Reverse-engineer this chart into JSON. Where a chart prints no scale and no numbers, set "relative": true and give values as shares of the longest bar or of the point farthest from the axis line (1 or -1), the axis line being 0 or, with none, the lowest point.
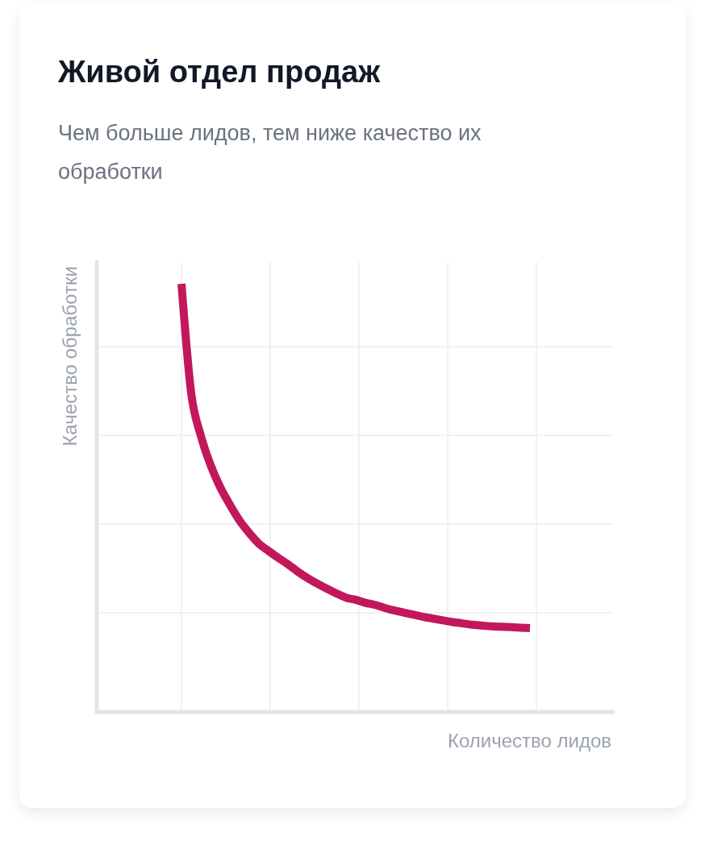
{
  "chart_data": {
    "type": "line",
    "title": "Живой отдел продаж",
    "subtitle": "Чем больше лидов, тем ниже качество их обработки",
    "xlabel": "Количество лидов",
    "ylabel": "Качество обработки",
    "relative": true,
    "grid": true,
    "categories": [
      null,
      null,
      null,
      null,
      null,
      null,
      null,
      null,
      null,
      null,
      null,
      null,
      null,
      null,
      null,
      null,
      null,
      null,
      null,
      null,
      null,
      null,
      null,
      null,
      null,
      null,
      null,
      null,
      null,
      null,
      null,
      null,
      null,
      null,
      null,
      null,
      null
    ],
    "series": [
      {
        "color": "#c2185b",
        "values": [
          1.0,
          0.745,
          0.645,
          0.577,
          0.525,
          0.484,
          0.447,
          0.418,
          0.393,
          0.376,
          0.36,
          0.345,
          0.328,
          0.313,
          0.3,
          0.288,
          0.277,
          0.267,
          0.262,
          0.255,
          0.25,
          0.243,
          0.237,
          0.232,
          0.227,
          0.222,
          0.218,
          0.214,
          0.21,
          0.207,
          0.204,
          0.202,
          0.2,
          0.199,
          0.198,
          0.197,
          0.196
        ]
      }
    ]
  }
}
